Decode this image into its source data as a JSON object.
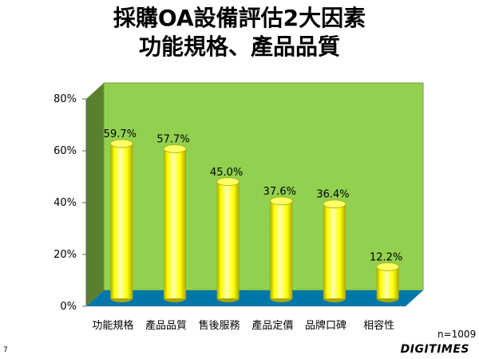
{
  "title_line1": "採購OA設備評估2大因素",
  "title_line2": "功能規格、產品品質",
  "sample_note": "n=1009",
  "page_number": "7",
  "brand": "DIGITIMES",
  "colors": {
    "back_wall": "#92d050",
    "side_wall": "#5a7f2f",
    "floor": "#0077a8",
    "bar": "#ffff00",
    "bar_shade": "#a8a800"
  },
  "chart_data": {
    "type": "bar",
    "categories": [
      "功能規格",
      "產品品質",
      "售後服務",
      "產品定價",
      "品牌口碑",
      "相容性"
    ],
    "values": [
      59.7,
      57.7,
      45.0,
      37.6,
      36.4,
      12.2
    ],
    "value_labels": [
      "59.7%",
      "57.7%",
      "45.0%",
      "37.6%",
      "36.4%",
      "12.2%"
    ],
    "title": "",
    "xlabel": "",
    "ylabel": "",
    "ylim": [
      0,
      80
    ],
    "yticks": [
      0,
      20,
      40,
      60,
      80
    ],
    "ytick_labels": [
      "0%",
      "20%",
      "40%",
      "60%",
      "80%"
    ],
    "grid": false,
    "legend": "none"
  }
}
